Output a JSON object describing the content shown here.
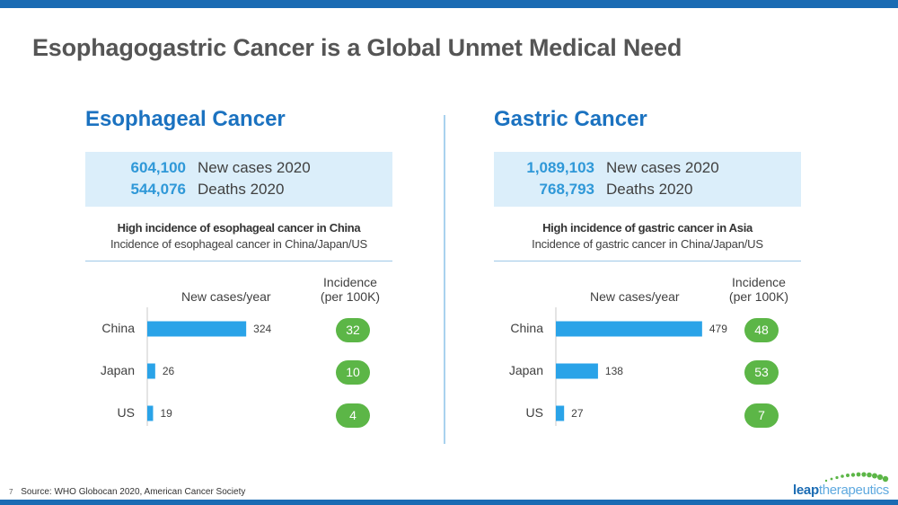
{
  "title": "Esophagogastric Cancer is a Global Unmet Medical Need",
  "colors": {
    "brand_blue": "#1a6bb3",
    "heading_blue": "#1b72c0",
    "bar_blue": "#2aa3e8",
    "bubble_green": "#5cb647",
    "box_bg": "#dbeefa"
  },
  "panels": [
    {
      "heading": "Esophageal Cancer",
      "stats": [
        {
          "value": "604,100",
          "label": "New cases 2020"
        },
        {
          "value": "544,076",
          "label": "Deaths 2020"
        }
      ],
      "subtitle": "High incidence of esophageal cancer in China",
      "description": "Incidence of esophageal cancer in China/Japan/US",
      "new_cases_header": "New cases/year",
      "incidence_header": [
        "Incidence",
        "(per 100K)"
      ],
      "incidence": [
        "32",
        "10",
        "4"
      ]
    },
    {
      "heading": "Gastric Cancer",
      "stats": [
        {
          "value": "1,089,103",
          "label": "New cases 2020"
        },
        {
          "value": "768,793",
          "label": "Deaths 2020"
        }
      ],
      "subtitle": "High incidence of gastric cancer in Asia",
      "description": "Incidence of gastric cancer in China/Japan/US",
      "new_cases_header": "New cases/year",
      "incidence_header": [
        "Incidence",
        "(per 100K)"
      ],
      "incidence": [
        "48",
        "53",
        "7"
      ]
    }
  ],
  "chart_data": [
    {
      "type": "bar",
      "orientation": "horizontal",
      "title": "Incidence of esophageal cancer in China/Japan/US",
      "xlabel": "New cases/year",
      "ylabel": "",
      "categories": [
        "China",
        "Japan",
        "US"
      ],
      "values": [
        324,
        26,
        19
      ],
      "labels": [
        "324",
        "26",
        "19"
      ],
      "xlim": [
        0,
        500
      ]
    },
    {
      "type": "bar",
      "orientation": "horizontal",
      "title": "Incidence of gastric cancer in China/Japan/US",
      "xlabel": "New cases/year",
      "ylabel": "",
      "categories": [
        "China",
        "Japan",
        "US"
      ],
      "values": [
        479,
        138,
        27
      ],
      "labels": [
        "479",
        "138",
        "27"
      ],
      "xlim": [
        0,
        500
      ]
    }
  ],
  "footer": {
    "page_number": "7",
    "source": "Source: WHO Globocan 2020, American Cancer Society"
  },
  "logo": {
    "part1": "leap",
    "part2": "therapeutics"
  }
}
